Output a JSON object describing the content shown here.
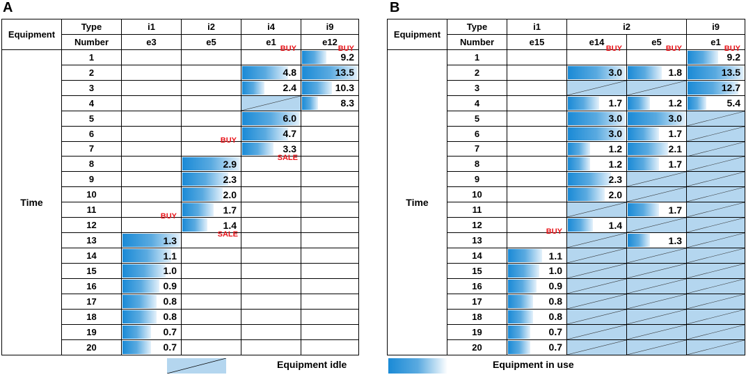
{
  "panels": [
    {
      "label": "A",
      "equipment_label": "Equipment",
      "type_label": "Type",
      "number_label": "Number",
      "time_label": "Time",
      "types": [
        {
          "name": "i1",
          "numbers": [
            "e3"
          ]
        },
        {
          "name": "i2",
          "numbers": [
            "e5"
          ]
        },
        {
          "name": "i4",
          "numbers": [
            "e1"
          ]
        },
        {
          "name": "i9",
          "numbers": [
            "e12"
          ]
        }
      ],
      "rows": [
        {
          "t": "1",
          "cells": [
            null,
            null,
            {
              "tag": "BUY"
            },
            {
              "v": "9.2",
              "f": 0.45,
              "tag": "BUY"
            }
          ]
        },
        {
          "t": "2",
          "cells": [
            null,
            null,
            {
              "v": "4.8",
              "f": 0.8
            },
            {
              "v": "13.5",
              "f": 1
            }
          ]
        },
        {
          "t": "3",
          "cells": [
            null,
            null,
            {
              "v": "2.4",
              "f": 0.4
            },
            {
              "v": "10.3",
              "f": 0.55
            }
          ]
        },
        {
          "t": "4",
          "cells": [
            null,
            null,
            {
              "idle": true
            },
            {
              "v": "8.3",
              "f": 0.3
            }
          ]
        },
        {
          "t": "5",
          "cells": [
            null,
            null,
            {
              "v": "6.0",
              "f": 1
            },
            null
          ]
        },
        {
          "t": "6",
          "cells": [
            null,
            null,
            {
              "v": "4.7",
              "f": 0.8
            },
            null
          ]
        },
        {
          "t": "7",
          "cells": [
            null,
            {
              "tag": "BUY"
            },
            {
              "v": "3.3",
              "f": 0.55,
              "sale": "SALE"
            },
            null
          ]
        },
        {
          "t": "8",
          "cells": [
            null,
            {
              "v": "2.9",
              "f": 1
            },
            null,
            null
          ]
        },
        {
          "t": "9",
          "cells": [
            null,
            {
              "v": "2.3",
              "f": 0.8
            },
            null,
            null
          ]
        },
        {
          "t": "10",
          "cells": [
            null,
            {
              "v": "2.0",
              "f": 0.7
            },
            null,
            null
          ]
        },
        {
          "t": "11",
          "cells": [
            null,
            {
              "v": "1.7",
              "f": 0.55
            },
            null,
            null
          ]
        },
        {
          "t": "12",
          "cells": [
            {
              "tag": "BUY"
            },
            {
              "v": "1.4",
              "f": 0.45,
              "sale": "SALE"
            },
            null,
            null
          ]
        },
        {
          "t": "13",
          "cells": [
            {
              "v": "1.3",
              "f": 1
            },
            null,
            null,
            null
          ]
        },
        {
          "t": "14",
          "cells": [
            {
              "v": "1.1",
              "f": 0.85
            },
            null,
            null,
            null
          ]
        },
        {
          "t": "15",
          "cells": [
            {
              "v": "1.0",
              "f": 0.75
            },
            null,
            null,
            null
          ]
        },
        {
          "t": "16",
          "cells": [
            {
              "v": "0.9",
              "f": 0.65
            },
            null,
            null,
            null
          ]
        },
        {
          "t": "17",
          "cells": [
            {
              "v": "0.8",
              "f": 0.6
            },
            null,
            null,
            null
          ]
        },
        {
          "t": "18",
          "cells": [
            {
              "v": "0.8",
              "f": 0.6
            },
            null,
            null,
            null
          ]
        },
        {
          "t": "19",
          "cells": [
            {
              "v": "0.7",
              "f": 0.5
            },
            null,
            null,
            null
          ]
        },
        {
          "t": "20",
          "cells": [
            {
              "v": "0.7",
              "f": 0.5
            },
            null,
            null,
            null
          ]
        }
      ]
    },
    {
      "label": "B",
      "equipment_label": "Equipment",
      "type_label": "Type",
      "number_label": "Number",
      "time_label": "Time",
      "types": [
        {
          "name": "i1",
          "numbers": [
            "e15"
          ]
        },
        {
          "name": "i2",
          "numbers": [
            "e14",
            "e5"
          ]
        },
        {
          "name": "i9",
          "numbers": [
            "e1"
          ]
        }
      ],
      "rows": [
        {
          "t": "1",
          "cells": [
            null,
            {
              "tag": "BUY"
            },
            {
              "tag": "BUY"
            },
            {
              "v": "9.2",
              "f": 0.55,
              "tag": "BUY"
            }
          ]
        },
        {
          "t": "2",
          "cells": [
            null,
            {
              "v": "3.0",
              "f": 1
            },
            {
              "v": "1.8",
              "f": 0.6
            },
            {
              "v": "13.5",
              "f": 1
            }
          ]
        },
        {
          "t": "3",
          "cells": [
            null,
            {
              "idle": true
            },
            {
              "idle": true
            },
            {
              "v": "12.7",
              "f": 0.9
            }
          ]
        },
        {
          "t": "4",
          "cells": [
            null,
            {
              "v": "1.7",
              "f": 0.55
            },
            {
              "v": "1.2",
              "f": 0.4
            },
            {
              "v": "5.4",
              "f": 0.35
            }
          ]
        },
        {
          "t": "5",
          "cells": [
            null,
            {
              "v": "3.0",
              "f": 1
            },
            {
              "v": "3.0",
              "f": 1
            },
            {
              "idle": true
            }
          ]
        },
        {
          "t": "6",
          "cells": [
            null,
            {
              "v": "3.0",
              "f": 1
            },
            {
              "v": "1.7",
              "f": 0.55
            },
            {
              "idle": true
            }
          ]
        },
        {
          "t": "7",
          "cells": [
            null,
            {
              "v": "1.2",
              "f": 0.4
            },
            {
              "v": "2.1",
              "f": 0.7
            },
            {
              "idle": true
            }
          ]
        },
        {
          "t": "8",
          "cells": [
            null,
            {
              "v": "1.2",
              "f": 0.4
            },
            {
              "v": "1.7",
              "f": 0.55
            },
            {
              "idle": true
            }
          ]
        },
        {
          "t": "9",
          "cells": [
            null,
            {
              "v": "2.3",
              "f": 0.75
            },
            {
              "idle": true
            },
            {
              "idle": true
            }
          ]
        },
        {
          "t": "10",
          "cells": [
            null,
            {
              "v": "2.0",
              "f": 0.65
            },
            {
              "idle": true
            },
            {
              "idle": true
            }
          ]
        },
        {
          "t": "11",
          "cells": [
            null,
            {
              "idle": true
            },
            {
              "v": "1.7",
              "f": 0.55
            },
            {
              "idle": true
            }
          ]
        },
        {
          "t": "12",
          "cells": [
            null,
            {
              "v": "1.4",
              "f": 0.45
            },
            {
              "idle": true
            },
            {
              "idle": true
            }
          ]
        },
        {
          "t": "13",
          "cells": [
            {
              "tag": "BUY"
            },
            {
              "idle": true
            },
            {
              "v": "1.3",
              "f": 0.4
            },
            {
              "idle": true
            }
          ]
        },
        {
          "t": "14",
          "cells": [
            {
              "v": "1.1",
              "f": 0.6
            },
            {
              "idle": true
            },
            {
              "idle": true
            },
            {
              "idle": true
            }
          ]
        },
        {
          "t": "15",
          "cells": [
            {
              "v": "1.0",
              "f": 0.55
            },
            {
              "idle": true
            },
            {
              "idle": true
            },
            {
              "idle": true
            }
          ]
        },
        {
          "t": "16",
          "cells": [
            {
              "v": "0.9",
              "f": 0.5
            },
            {
              "idle": true
            },
            {
              "idle": true
            },
            {
              "idle": true
            }
          ]
        },
        {
          "t": "17",
          "cells": [
            {
              "v": "0.8",
              "f": 0.45
            },
            {
              "idle": true
            },
            {
              "idle": true
            },
            {
              "idle": true
            }
          ]
        },
        {
          "t": "18",
          "cells": [
            {
              "v": "0.8",
              "f": 0.45
            },
            {
              "idle": true
            },
            {
              "idle": true
            },
            {
              "idle": true
            }
          ]
        },
        {
          "t": "19",
          "cells": [
            {
              "v": "0.7",
              "f": 0.4
            },
            {
              "idle": true
            },
            {
              "idle": true
            },
            {
              "idle": true
            }
          ]
        },
        {
          "t": "20",
          "cells": [
            {
              "v": "0.7",
              "f": 0.4
            },
            {
              "idle": true
            },
            {
              "idle": true
            },
            {
              "idle": true
            }
          ]
        }
      ]
    }
  ],
  "legend": {
    "idle_label": "Equipment idle",
    "in_use_label": "Equipment in use",
    "idle_color": "#b4d6ef",
    "in_use_color": "#1a8ad6"
  }
}
